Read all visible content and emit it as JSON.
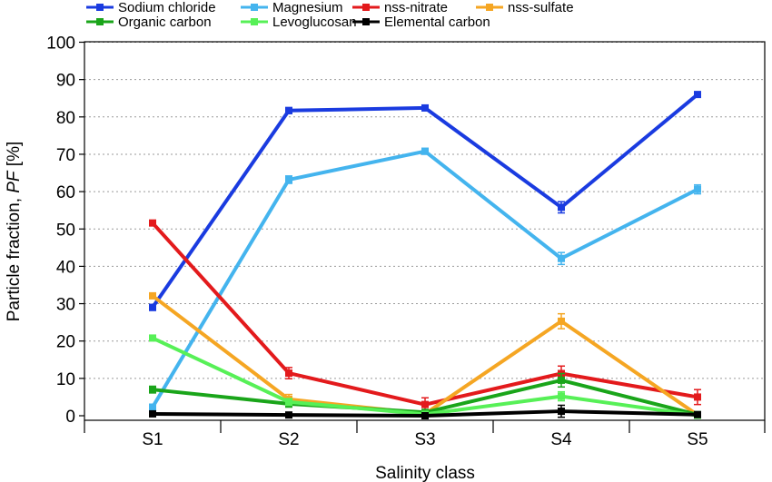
{
  "chart_data": {
    "type": "line",
    "title": "",
    "xlabel": "Salinity class",
    "ylabel_main": "Particle fraction, ",
    "ylabel_italic": "PF",
    "ylabel_unit": " [%]",
    "categories": [
      "S1",
      "S2",
      "S3",
      "S4",
      "S5"
    ],
    "ylim": [
      0,
      100
    ],
    "yticks": [
      0,
      10,
      20,
      30,
      40,
      50,
      60,
      70,
      80,
      90,
      100
    ],
    "grid": true,
    "legend_position": "top",
    "series": [
      {
        "name": "Sodium chloride",
        "color": "#1a3be0",
        "values": [
          29,
          81.7,
          82.4,
          55.8,
          86
        ],
        "errors": [
          0.8,
          0.8,
          0.7,
          1.5,
          0.7
        ]
      },
      {
        "name": "Magnesium",
        "color": "#44b4ee",
        "values": [
          2.3,
          63.2,
          70.8,
          42.1,
          60.6
        ],
        "errors": [
          0.8,
          1.0,
          0.8,
          1.6,
          1.2
        ]
      },
      {
        "name": "nss-nitrate",
        "color": "#e31a1c",
        "values": [
          51.6,
          11.4,
          3,
          11.3,
          5
        ],
        "errors": [
          0.6,
          1.5,
          1.8,
          2.0,
          2.0
        ]
      },
      {
        "name": "nss-sulfate",
        "color": "#f5a623",
        "values": [
          32.1,
          4.4,
          0.5,
          25.3,
          0.2
        ],
        "errors": [
          0.7,
          1.3,
          0.5,
          2.0,
          0.5
        ]
      },
      {
        "name": "Organic carbon",
        "color": "#1aa51a",
        "values": [
          7,
          3.2,
          0.9,
          9.5,
          0.3
        ],
        "errors": [
          0.9,
          0.9,
          0.6,
          1.8,
          0.5
        ]
      },
      {
        "name": "Levoglucosan",
        "color": "#57f057",
        "values": [
          20.8,
          3.7,
          0.4,
          5.2,
          0.1
        ],
        "errors": [
          0.6,
          0.9,
          0.4,
          1.2,
          0.3
        ]
      },
      {
        "name": "Elemental carbon",
        "color": "#000000",
        "values": [
          0.5,
          0.2,
          0,
          1.2,
          0.3
        ],
        "errors": [
          0.4,
          0.4,
          0.3,
          1.6,
          0.3
        ]
      }
    ]
  }
}
